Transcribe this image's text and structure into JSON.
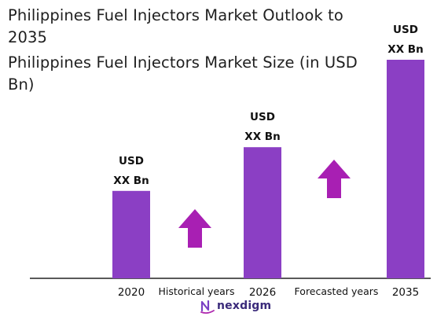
{
  "title": "Philippines Fuel Injectors Market Outlook to 2035",
  "chart_data": {
    "type": "bar",
    "title": "Philippines Fuel Injectors Market Size (in USD Bn)",
    "categories": [
      "2020",
      "2026",
      "2035"
    ],
    "values": [
      1.0,
      1.5,
      2.5
    ],
    "value_labels": [
      [
        "USD",
        "XX Bn"
      ],
      [
        "USD",
        "XX Bn"
      ],
      [
        "USD",
        "XX Bn"
      ]
    ],
    "annotations": [
      "Historical years",
      "Forecasted years"
    ],
    "bar_color": "#8b3fc4",
    "arrow_color": "#a81fb3",
    "grid": false,
    "ylim": [
      0,
      2.5
    ]
  },
  "logo": {
    "text": "nexdigm",
    "color": "#3a2a7a"
  }
}
